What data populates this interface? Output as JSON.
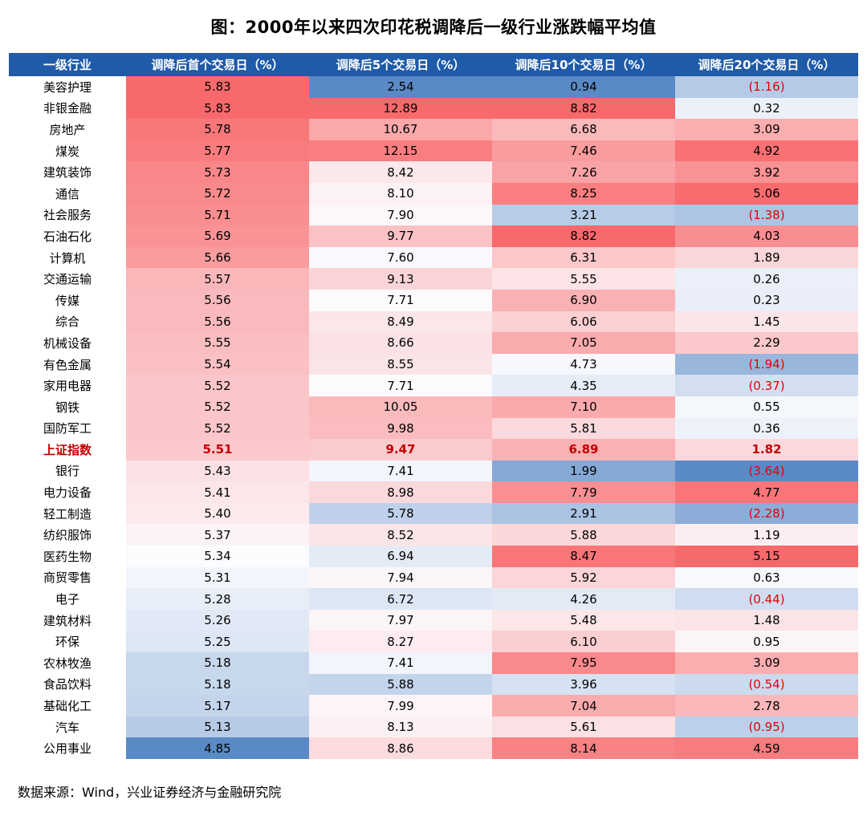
{
  "source_note": "数据来源：Wind，兴业证券经济与金融研究院",
  "colors": {
    "header_bg": "#1F5BA8",
    "header_text": "#FFFFFF",
    "heat_low": "#5A8AC6",
    "heat_mid": "#FCFCFF",
    "heat_high": "#F8696B",
    "negative_text": "#E60000",
    "highlight_text": "#C00000"
  },
  "chart_data": {
    "type": "table",
    "title": "图：2000年以来四次印花税调降后一级行业涨跌幅平均值",
    "columns": [
      "一级行业",
      "调降后首个交易日（%）",
      "调降后5个交易日（%）",
      "调降后10个交易日（%）",
      "调降后20个交易日（%）"
    ],
    "negative_format": "parentheses-red",
    "heatmap": {
      "scope": "per-column",
      "low_color": "#5A8AC6",
      "mid_color": "#FCFCFF",
      "high_color": "#F8696B"
    },
    "rows": [
      {
        "industry": "美容护理",
        "values": [
          5.83,
          2.54,
          0.94,
          -1.16
        ],
        "highlight": false
      },
      {
        "industry": "非银金融",
        "values": [
          5.83,
          12.89,
          8.82,
          0.32
        ],
        "highlight": false
      },
      {
        "industry": "房地产",
        "values": [
          5.78,
          10.67,
          6.68,
          3.09
        ],
        "highlight": false
      },
      {
        "industry": "煤炭",
        "values": [
          5.77,
          12.15,
          7.46,
          4.92
        ],
        "highlight": false
      },
      {
        "industry": "建筑装饰",
        "values": [
          5.73,
          8.42,
          7.26,
          3.92
        ],
        "highlight": false
      },
      {
        "industry": "通信",
        "values": [
          5.72,
          8.1,
          8.25,
          5.06
        ],
        "highlight": false
      },
      {
        "industry": "社会服务",
        "values": [
          5.71,
          7.9,
          3.21,
          -1.38
        ],
        "highlight": false
      },
      {
        "industry": "石油石化",
        "values": [
          5.69,
          9.77,
          8.82,
          4.03
        ],
        "highlight": false
      },
      {
        "industry": "计算机",
        "values": [
          5.66,
          7.6,
          6.31,
          1.89
        ],
        "highlight": false
      },
      {
        "industry": "交通运输",
        "values": [
          5.57,
          9.13,
          5.55,
          0.26
        ],
        "highlight": false
      },
      {
        "industry": "传媒",
        "values": [
          5.56,
          7.71,
          6.9,
          0.23
        ],
        "highlight": false
      },
      {
        "industry": "综合",
        "values": [
          5.56,
          8.49,
          6.06,
          1.45
        ],
        "highlight": false
      },
      {
        "industry": "机械设备",
        "values": [
          5.55,
          8.66,
          7.05,
          2.29
        ],
        "highlight": false
      },
      {
        "industry": "有色金属",
        "values": [
          5.54,
          8.55,
          4.73,
          -1.94
        ],
        "highlight": false
      },
      {
        "industry": "家用电器",
        "values": [
          5.52,
          7.71,
          4.35,
          -0.37
        ],
        "highlight": false
      },
      {
        "industry": "钢铁",
        "values": [
          5.52,
          10.05,
          7.1,
          0.55
        ],
        "highlight": false
      },
      {
        "industry": "国防军工",
        "values": [
          5.52,
          9.98,
          5.81,
          0.36
        ],
        "highlight": false
      },
      {
        "industry": "上证指数",
        "values": [
          5.51,
          9.47,
          6.89,
          1.82
        ],
        "highlight": true
      },
      {
        "industry": "银行",
        "values": [
          5.43,
          7.41,
          1.99,
          -3.64
        ],
        "highlight": false
      },
      {
        "industry": "电力设备",
        "values": [
          5.41,
          8.98,
          7.79,
          4.77
        ],
        "highlight": false
      },
      {
        "industry": "轻工制造",
        "values": [
          5.4,
          5.78,
          2.91,
          -2.28
        ],
        "highlight": false
      },
      {
        "industry": "纺织服饰",
        "values": [
          5.37,
          8.52,
          5.88,
          1.19
        ],
        "highlight": false
      },
      {
        "industry": "医药生物",
        "values": [
          5.34,
          6.94,
          8.47,
          5.15
        ],
        "highlight": false
      },
      {
        "industry": "商贸零售",
        "values": [
          5.31,
          7.94,
          5.92,
          0.63
        ],
        "highlight": false
      },
      {
        "industry": "电子",
        "values": [
          5.28,
          6.72,
          4.26,
          -0.44
        ],
        "highlight": false
      },
      {
        "industry": "建筑材料",
        "values": [
          5.26,
          7.97,
          5.48,
          1.48
        ],
        "highlight": false
      },
      {
        "industry": "环保",
        "values": [
          5.25,
          8.27,
          6.1,
          0.95
        ],
        "highlight": false
      },
      {
        "industry": "农林牧渔",
        "values": [
          5.18,
          7.41,
          7.95,
          3.09
        ],
        "highlight": false
      },
      {
        "industry": "食品饮料",
        "values": [
          5.18,
          5.88,
          3.96,
          -0.54
        ],
        "highlight": false
      },
      {
        "industry": "基础化工",
        "values": [
          5.17,
          7.99,
          7.04,
          2.78
        ],
        "highlight": false
      },
      {
        "industry": "汽车",
        "values": [
          5.13,
          8.13,
          5.61,
          -0.95
        ],
        "highlight": false
      },
      {
        "industry": "公用事业",
        "values": [
          4.85,
          8.86,
          8.14,
          4.59
        ],
        "highlight": false
      }
    ]
  }
}
